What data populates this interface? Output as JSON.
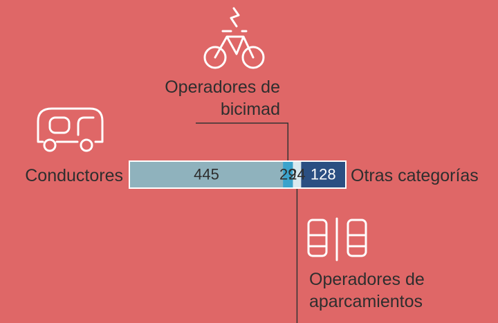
{
  "chart_data": {
    "type": "stacked-bar",
    "series": [
      {
        "name": "Conductores",
        "color": "#8fb2bd",
        "values": [
          445
        ]
      },
      {
        "name": "Operadores de bicimad",
        "color": "#3ba3cc",
        "values": [
          29
        ]
      },
      {
        "name": "Operadores de aparcamientos",
        "color": "#d9e9ef",
        "values": [
          24
        ]
      },
      {
        "name": "Otras categorías",
        "color": "#2b4f82",
        "values": [
          128
        ]
      }
    ]
  }
}
